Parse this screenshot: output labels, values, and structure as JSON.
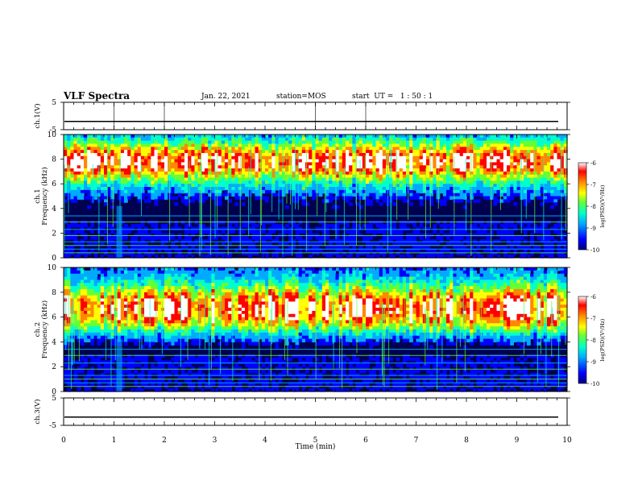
{
  "header": {
    "title": "VLF Spectra",
    "date": "Jan. 22, 2021",
    "station": "station=MOS",
    "start": "start  UT =   1 : 50 : 1"
  },
  "chart_data": {
    "type": "heatmap",
    "title": "VLF Spectra",
    "xlabel": "Time  (min)",
    "xlim": [
      0,
      10
    ],
    "xticks": [
      "0",
      "1",
      "2",
      "3",
      "4",
      "5",
      "6",
      "7",
      "8",
      "9",
      "10"
    ],
    "panels": [
      {
        "name": "ch.1(V)",
        "type": "line",
        "ylabel": "ch.1(V)",
        "ylim": [
          -5,
          5
        ],
        "yticks": [
          "5",
          "-5"
        ],
        "level": -2
      },
      {
        "name": "ch.1",
        "type": "spectrogram",
        "ylabel": "ch.1\nFrequency  (kHz)",
        "ylim": [
          0,
          10
        ],
        "yticks": [
          "0",
          "2",
          "4",
          "6",
          "8",
          "10"
        ],
        "band_center_khz": 7.8,
        "band_width_khz": 1.6
      },
      {
        "name": "ch.2",
        "type": "spectrogram",
        "ylabel": "ch.2\nFrequency  (kHz)",
        "ylim": [
          0,
          10
        ],
        "yticks": [
          "0",
          "2",
          "4",
          "6",
          "8",
          "10"
        ],
        "band_center_khz": 6.7,
        "band_width_khz": 1.9
      },
      {
        "name": "ch.3(V)",
        "type": "line",
        "ylabel": "ch.3(V)",
        "ylim": [
          -5,
          5
        ],
        "yticks": [
          "5",
          "-5"
        ],
        "level": -2
      }
    ],
    "colorbar": {
      "label": "log(PSD)(V²/Hz)",
      "range": [
        -10,
        -6
      ],
      "ticks": [
        "-6",
        "-7",
        "-8",
        "-9",
        "-10"
      ],
      "colormap": [
        "#000080",
        "#0000ff",
        "#00aaff",
        "#00ffcc",
        "#66ff33",
        "#ffff00",
        "#ff8800",
        "#ff0000",
        "#ffffff"
      ]
    },
    "steady_lines_khz": [
      0.4,
      0.7,
      1.0,
      1.3,
      1.8,
      2.3,
      2.9,
      3.4
    ]
  }
}
